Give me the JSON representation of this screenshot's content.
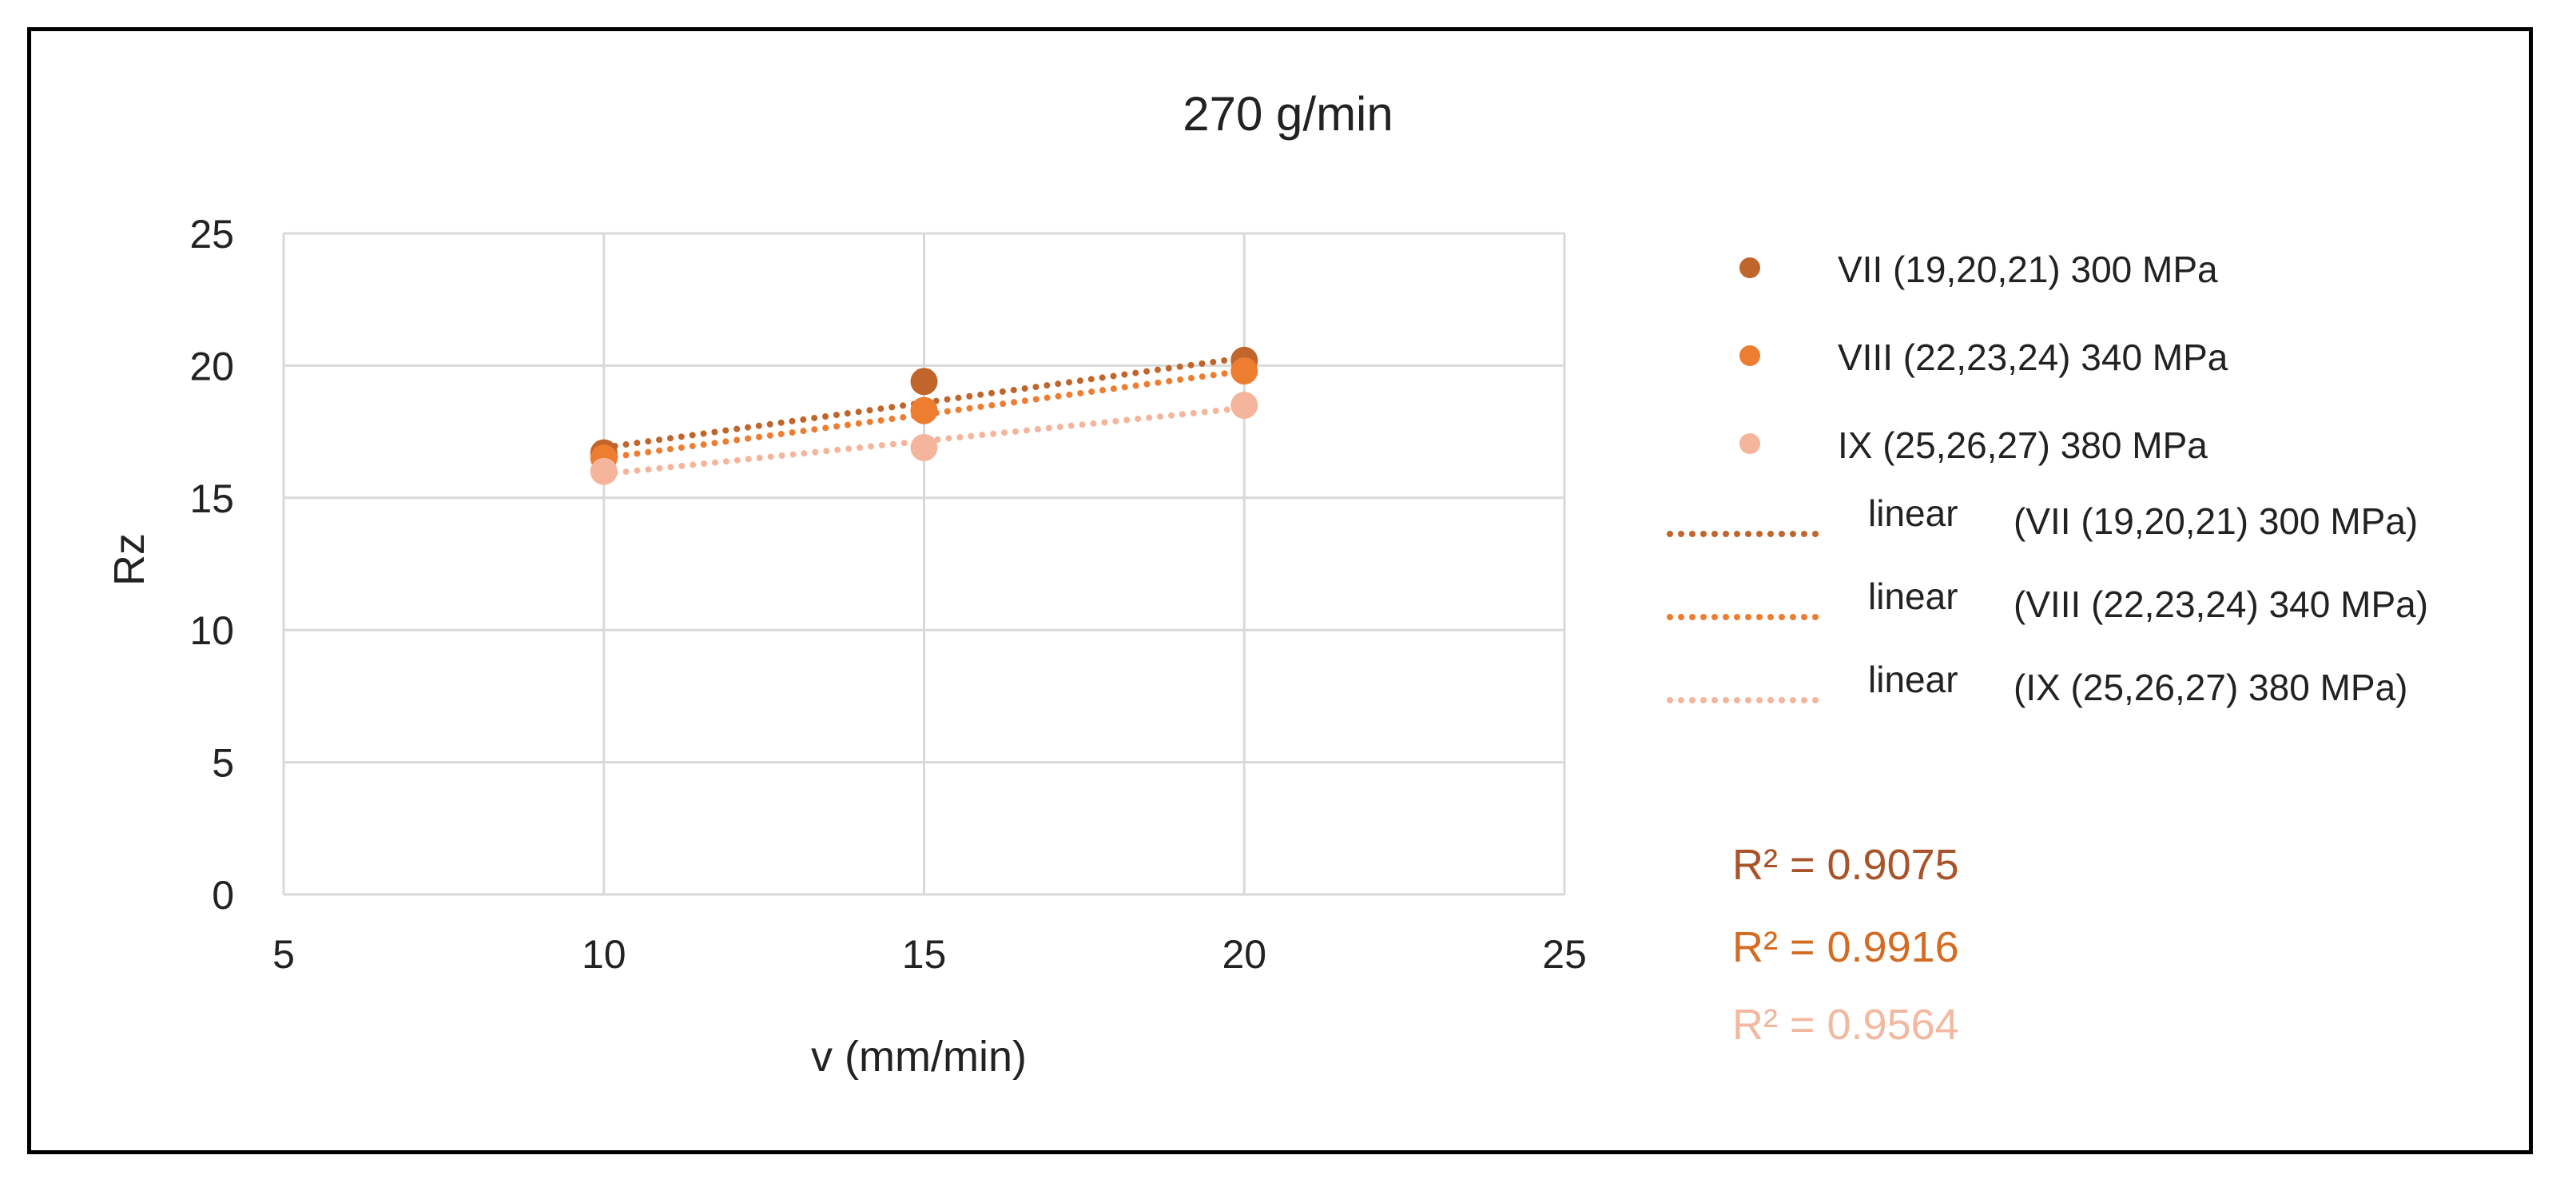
{
  "chart_data": {
    "type": "scatter",
    "title": "270 g/min",
    "xlabel": "v (mm/min)",
    "ylabel": "Rz",
    "xlim": [
      5,
      25
    ],
    "ylim": [
      0,
      25
    ],
    "x_ticks": [
      5,
      10,
      15,
      20,
      25
    ],
    "y_ticks": [
      0,
      5,
      10,
      15,
      20,
      25
    ],
    "grid": true,
    "legend_position": "right",
    "series": [
      {
        "name": "VII (19,20,21) 300 MPa",
        "color": "#c0652b",
        "x": [
          10,
          15,
          20
        ],
        "y": [
          16.7,
          19.4,
          20.2
        ],
        "trend": {
          "label": "linear",
          "name": "(VII (19,20,21) 300 MPa)",
          "y": [
            16.9,
            18.6,
            20.3
          ]
        },
        "r2": "R² = 0.9075",
        "r2_color": "#a8542a"
      },
      {
        "name": "VIII (22,23,24) 340 MPa",
        "color": "#ed7d31",
        "x": [
          10,
          15,
          20
        ],
        "y": [
          16.5,
          18.3,
          19.8
        ],
        "trend": {
          "label": "linear",
          "name": "(VIII (22,23,24) 340 MPa)",
          "y": [
            16.5,
            18.2,
            19.8
          ]
        },
        "r2": "R² = 0.9916",
        "r2_color": "#d46b22"
      },
      {
        "name": "IX (25,26,27) 380 MPa",
        "color": "#f4b59c",
        "x": [
          10,
          15,
          20
        ],
        "y": [
          16.0,
          16.9,
          18.5
        ],
        "trend": {
          "label": "linear",
          "name": "(IX (25,26,27) 380 MPa)",
          "y": [
            15.9,
            17.2,
            18.4
          ]
        },
        "r2": "R² = 0.9564",
        "r2_color": "#f2b8a0"
      }
    ]
  }
}
